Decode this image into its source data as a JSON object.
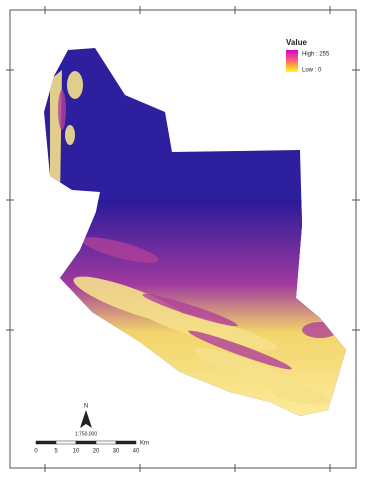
{
  "legend": {
    "title": "Value",
    "high": "High : 255",
    "low": "Low : 0"
  },
  "north_arrow": {
    "label": "N",
    "scale_text": "1:750,000"
  },
  "scale_bar": {
    "labels": [
      "0",
      "5",
      "10",
      "20",
      "30",
      "40"
    ],
    "unit": "Km"
  }
}
